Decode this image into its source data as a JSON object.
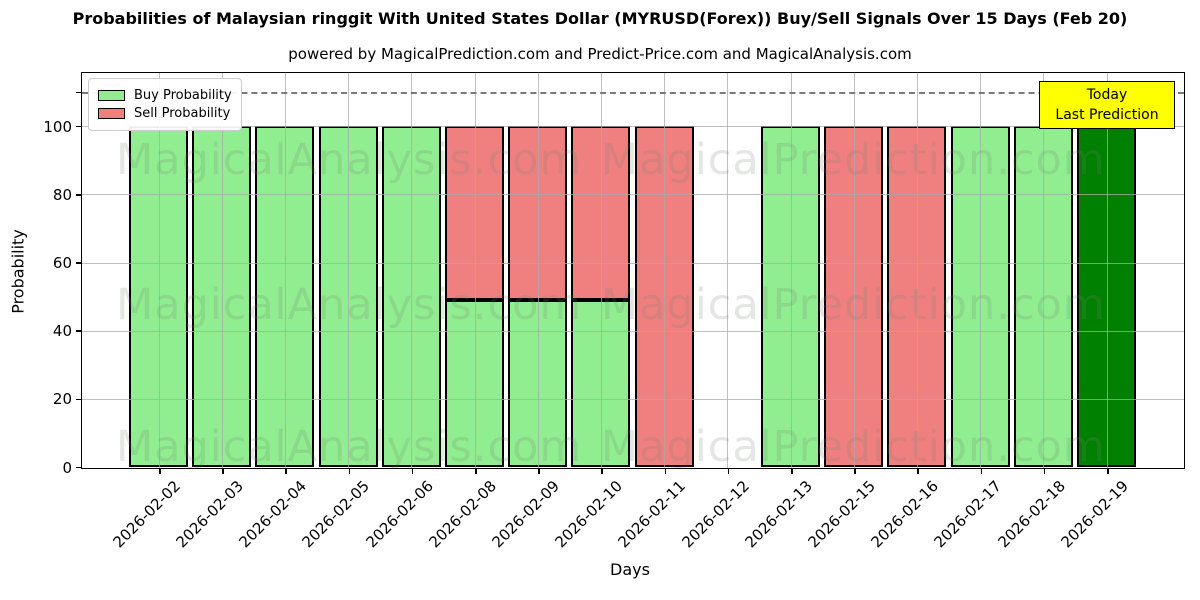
{
  "chart_data": {
    "type": "bar",
    "stacked": true,
    "title": "Probabilities of Malaysian ringgit With United States Dollar (MYRUSD(Forex)) Buy/Sell Signals Over 15 Days (Feb 20)",
    "subtitle": "powered by MagicalPrediction.com and Predict-Price.com and MagicalAnalysis.com",
    "xlabel": "Days",
    "ylabel": "Probability",
    "categories": [
      "2026-02-02",
      "2026-02-03",
      "2026-02-04",
      "2026-02-05",
      "2026-02-06",
      "2026-02-08",
      "2026-02-09",
      "2026-02-10",
      "2026-02-11",
      "2026-02-12",
      "2026-02-13",
      "2026-02-15",
      "2026-02-16",
      "2026-02-17",
      "2026-02-18",
      "2026-02-19"
    ],
    "series": [
      {
        "name": "Buy Probability",
        "color": "#90EE90",
        "values": [
          100,
          100,
          100,
          100,
          100,
          49,
          49,
          49,
          0,
          0,
          100,
          0,
          0,
          100,
          100,
          100
        ]
      },
      {
        "name": "Sell Probability",
        "color": "#F08080",
        "values": [
          0,
          0,
          0,
          0,
          0,
          51,
          51,
          51,
          100,
          0,
          0,
          100,
          100,
          0,
          0,
          0
        ]
      }
    ],
    "today_index": 15,
    "today_color": "#008000",
    "bar_edge_color": "#000000",
    "yticks": [
      0,
      20,
      40,
      60,
      80,
      100
    ],
    "ylim": [
      0,
      115.6
    ],
    "dashed_line_y": 110,
    "grid": true,
    "legend_position": "upper-left",
    "annotation": {
      "lines": [
        "Today",
        "Last Prediction"
      ],
      "bg": "#FFFF00"
    },
    "watermarks": {
      "left_text": "MagicalAnalysis.com",
      "right_text": "MagicalPrediction.com"
    }
  }
}
